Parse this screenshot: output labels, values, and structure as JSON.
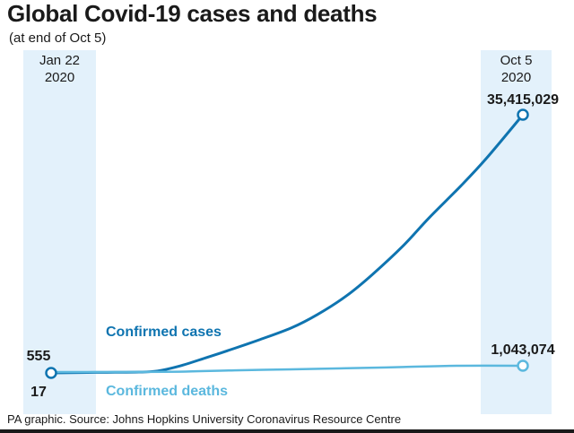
{
  "title": "Global Covid-19 cases and deaths",
  "subtitle": "(at end of Oct 5)",
  "footer": "PA graphic. Source: Johns Hopkins University Coronavirus Resource Centre",
  "colors": {
    "cases": "#0f74b0",
    "deaths": "#5bb8de",
    "band": "#e3f1fb",
    "text": "#1a1a1a"
  },
  "chart_data": {
    "type": "line",
    "title": "Global Covid-19 cases and deaths",
    "subtitle": "(at end of Oct 5)",
    "x_start": {
      "line1": "Jan 22",
      "line2": "2020"
    },
    "x_end": {
      "line1": "Oct 5",
      "line2": "2020"
    },
    "series": [
      {
        "name": "Confirmed cases",
        "start_label": "555",
        "end_label": "35,415,029",
        "points": [
          [
            "2020-01-22",
            555
          ],
          [
            "2020-02-15",
            69000
          ],
          [
            "2020-03-10",
            120000
          ],
          [
            "2020-03-20",
            270000
          ],
          [
            "2020-04-01",
            950000
          ],
          [
            "2020-04-15",
            2050000
          ],
          [
            "2020-05-01",
            3380000
          ],
          [
            "2020-05-15",
            4600000
          ],
          [
            "2020-06-01",
            6200000
          ],
          [
            "2020-06-15",
            8000000
          ],
          [
            "2020-07-01",
            10600000
          ],
          [
            "2020-07-15",
            13500000
          ],
          [
            "2020-08-01",
            17500000
          ],
          [
            "2020-08-15",
            21300000
          ],
          [
            "2020-09-01",
            25600000
          ],
          [
            "2020-09-15",
            29400000
          ],
          [
            "2020-10-05",
            35415029
          ]
        ]
      },
      {
        "name": "Confirmed deaths",
        "start_label": "17",
        "end_label": "1,043,074",
        "points": [
          [
            "2020-01-22",
            17
          ],
          [
            "2020-03-01",
            3000
          ],
          [
            "2020-04-01",
            50000
          ],
          [
            "2020-05-01",
            235000
          ],
          [
            "2020-06-01",
            375000
          ],
          [
            "2020-07-01",
            515000
          ],
          [
            "2020-08-01",
            690000
          ],
          [
            "2020-09-01",
            860000
          ],
          [
            "2020-10-05",
            1043074
          ]
        ]
      }
    ],
    "ylim": [
      0,
      36000000
    ],
    "grid": false
  }
}
